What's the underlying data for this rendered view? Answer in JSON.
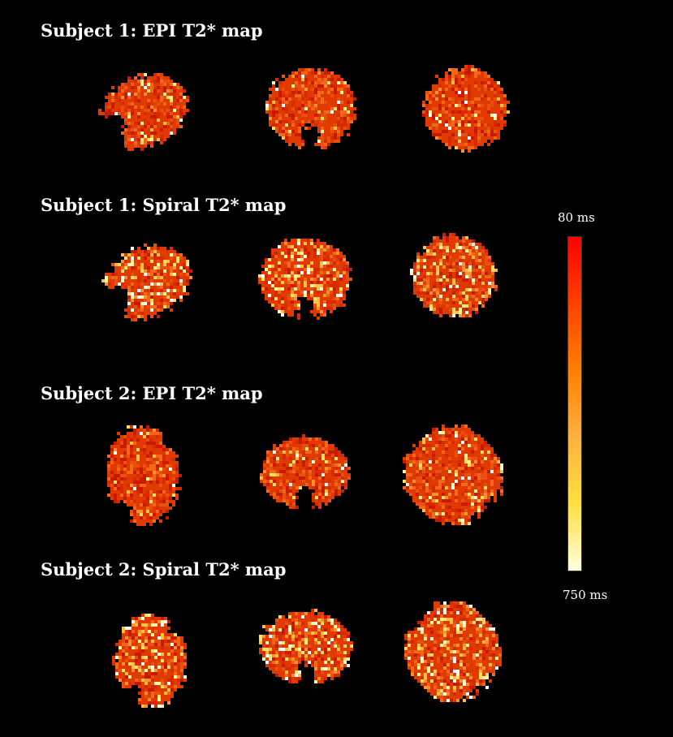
{
  "rows": [
    {
      "title": "Subject 1: EPI T2* map"
    },
    {
      "title": "Subject 1: Spiral T2* map"
    },
    {
      "title": "Subject 2: EPI T2* map"
    },
    {
      "title": "Subject 2: Spiral T2* map"
    }
  ],
  "colorbar": {
    "top_label": "80 ms",
    "bottom_label": "750 ms",
    "colors": [
      "#ff0000",
      "#ff4000",
      "#ff8000",
      "#ffb040",
      "#ffe040",
      "#ffffe0"
    ]
  },
  "palette": {
    "base": "#e03a00",
    "warm": [
      "#c81a00",
      "#d82a00",
      "#e85010",
      "#f06818",
      "#ff9030",
      "#ffc040"
    ],
    "bright": [
      "#ffffff",
      "#fff4a0",
      "#ffe060"
    ]
  }
}
